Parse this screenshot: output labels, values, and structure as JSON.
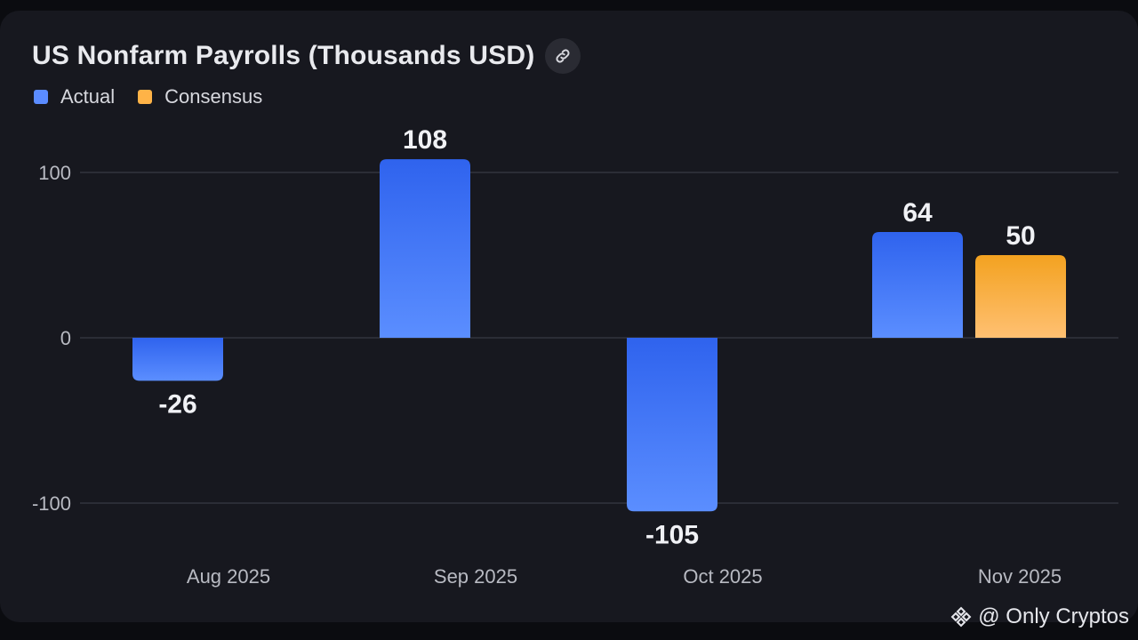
{
  "title": "US Nonfarm Payrolls (Thousands USD)",
  "link_icon": "link-icon",
  "legend": [
    {
      "label": "Actual",
      "color": "#5b8cff"
    },
    {
      "label": "Consensus",
      "color": "#ffb347"
    }
  ],
  "watermark": {
    "text": "@ Only Cryptos",
    "icon": "binance-diamond-logo"
  },
  "colors": {
    "actual_top": "#2f63ee",
    "actual_bottom": "#5b8eff",
    "consensus_top": "#f3a220",
    "consensus_bottom": "#ffc072",
    "grid": "#2b2d36",
    "axis_text": "#b8bac2",
    "label_text": "#f0f1f5"
  },
  "chart_data": {
    "type": "bar",
    "categories": [
      "Aug 2025",
      "Sep 2025",
      "Oct 2025",
      "Nov 2025"
    ],
    "series": [
      {
        "name": "Actual",
        "values": [
          -26,
          108,
          -105,
          64
        ]
      },
      {
        "name": "Consensus",
        "values": [
          null,
          null,
          null,
          50
        ]
      }
    ],
    "yticks": [
      -100,
      0,
      100
    ],
    "ylim": [
      -116,
      116
    ],
    "grid": true,
    "legend_position": "top-left"
  }
}
